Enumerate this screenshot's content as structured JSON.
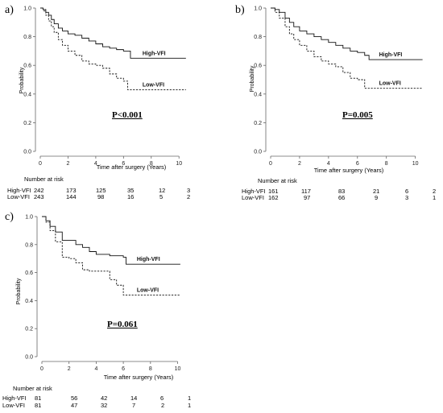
{
  "chart_data": [
    {
      "panel_label": "a)",
      "type": "line",
      "ylabel": "Probability",
      "xlabel": "Time after surgery (Years)",
      "xlim": [
        0,
        10
      ],
      "ylim": [
        0,
        1.0
      ],
      "xticks": [
        "0",
        "2",
        "4",
        "6",
        "8",
        "10"
      ],
      "yticks": [
        "0.0",
        "0.2",
        "0.4",
        "0.6",
        "0.8",
        "1.0"
      ],
      "pvalue": "P<0.001",
      "series": [
        {
          "name": "High-VFI",
          "style": "solid",
          "points": [
            [
              0,
              1.0
            ],
            [
              0.2,
              0.99
            ],
            [
              0.4,
              0.97
            ],
            [
              0.6,
              0.95
            ],
            [
              0.8,
              0.92
            ],
            [
              1.0,
              0.89
            ],
            [
              1.3,
              0.86
            ],
            [
              1.6,
              0.84
            ],
            [
              2.0,
              0.82
            ],
            [
              2.5,
              0.81
            ],
            [
              3.0,
              0.79
            ],
            [
              3.5,
              0.77
            ],
            [
              4.0,
              0.75
            ],
            [
              4.5,
              0.73
            ],
            [
              5.0,
              0.72
            ],
            [
              5.5,
              0.71
            ],
            [
              6.0,
              0.7
            ],
            [
              6.5,
              0.65
            ],
            [
              10.5,
              0.65
            ]
          ]
        },
        {
          "name": "Low-VFI",
          "style": "dashed",
          "points": [
            [
              0,
              1.0
            ],
            [
              0.2,
              0.98
            ],
            [
              0.4,
              0.95
            ],
            [
              0.6,
              0.91
            ],
            [
              0.8,
              0.87
            ],
            [
              1.0,
              0.83
            ],
            [
              1.3,
              0.78
            ],
            [
              1.6,
              0.74
            ],
            [
              2.0,
              0.7
            ],
            [
              2.5,
              0.67
            ],
            [
              3.0,
              0.63
            ],
            [
              3.5,
              0.61
            ],
            [
              4.0,
              0.6
            ],
            [
              4.5,
              0.58
            ],
            [
              5.0,
              0.54
            ],
            [
              5.5,
              0.51
            ],
            [
              6.0,
              0.49
            ],
            [
              6.3,
              0.43
            ],
            [
              10.5,
              0.43
            ]
          ]
        }
      ],
      "number_at_risk": {
        "title": "Number at risk",
        "times": [
          0,
          2,
          4,
          6,
          8,
          10
        ],
        "rows": [
          {
            "label": "High-VFI",
            "values": [
              "242",
              "173",
              "125",
              "35",
              "12",
              "3"
            ]
          },
          {
            "label": "Low-VFI",
            "values": [
              "243",
              "144",
              "98",
              "16",
              "5",
              "2"
            ]
          }
        ]
      }
    },
    {
      "panel_label": "b)",
      "type": "line",
      "ylabel": "Probability",
      "xlabel": "Time after surgery (Years)",
      "xlim": [
        0,
        10
      ],
      "ylim": [
        0,
        1.0
      ],
      "xticks": [
        "0",
        "2",
        "4",
        "6",
        "8",
        "10"
      ],
      "yticks": [
        "0.0",
        "0.2",
        "0.4",
        "0.6",
        "0.8",
        "1.0"
      ],
      "pvalue": "P=0.005",
      "series": [
        {
          "name": "High-VFI",
          "style": "solid",
          "points": [
            [
              0,
              1.0
            ],
            [
              0.3,
              0.99
            ],
            [
              0.6,
              0.97
            ],
            [
              1.0,
              0.93
            ],
            [
              1.3,
              0.9
            ],
            [
              1.6,
              0.87
            ],
            [
              2.0,
              0.84
            ],
            [
              2.5,
              0.82
            ],
            [
              3.0,
              0.8
            ],
            [
              3.5,
              0.78
            ],
            [
              4.0,
              0.76
            ],
            [
              4.5,
              0.74
            ],
            [
              5.0,
              0.72
            ],
            [
              5.5,
              0.7
            ],
            [
              6.0,
              0.69
            ],
            [
              6.5,
              0.67
            ],
            [
              6.8,
              0.64
            ],
            [
              10.5,
              0.64
            ]
          ]
        },
        {
          "name": "Low-VFI",
          "style": "dashed",
          "points": [
            [
              0,
              1.0
            ],
            [
              0.3,
              0.97
            ],
            [
              0.6,
              0.93
            ],
            [
              1.0,
              0.87
            ],
            [
              1.3,
              0.82
            ],
            [
              1.6,
              0.78
            ],
            [
              2.0,
              0.74
            ],
            [
              2.5,
              0.7
            ],
            [
              3.0,
              0.66
            ],
            [
              3.5,
              0.63
            ],
            [
              4.0,
              0.61
            ],
            [
              4.5,
              0.59
            ],
            [
              5.0,
              0.55
            ],
            [
              5.5,
              0.51
            ],
            [
              6.0,
              0.5
            ],
            [
              6.5,
              0.44
            ],
            [
              10.5,
              0.44
            ]
          ]
        }
      ],
      "number_at_risk": {
        "title": "Number at risk",
        "times": [
          0,
          2,
          4,
          6,
          8,
          10
        ],
        "rows": [
          {
            "label": "High-VFI",
            "values": [
              "161",
              "117",
              "83",
              "21",
              "6",
              "2"
            ]
          },
          {
            "label": "Low-VFI",
            "values": [
              "162",
              "97",
              "66",
              "9",
              "3",
              "1"
            ]
          }
        ]
      }
    },
    {
      "panel_label": "c)",
      "type": "line",
      "ylabel": "Probability",
      "xlabel": "Time after surgery (Years)",
      "xlim": [
        0,
        10
      ],
      "ylim": [
        0,
        1.0
      ],
      "xticks": [
        "0",
        "2",
        "4",
        "6",
        "8",
        "10"
      ],
      "yticks": [
        "0.0",
        "0.2",
        "0.4",
        "0.6",
        "0.8",
        "1.0"
      ],
      "pvalue": "P=0.061",
      "series": [
        {
          "name": "High-VFI",
          "style": "solid",
          "points": [
            [
              0,
              1.0
            ],
            [
              0.3,
              0.97
            ],
            [
              0.6,
              0.93
            ],
            [
              1.0,
              0.89
            ],
            [
              1.5,
              0.83
            ],
            [
              2.0,
              0.83
            ],
            [
              2.5,
              0.8
            ],
            [
              3.0,
              0.78
            ],
            [
              3.5,
              0.75
            ],
            [
              4.0,
              0.73
            ],
            [
              4.5,
              0.73
            ],
            [
              5.0,
              0.72
            ],
            [
              6.0,
              0.71
            ],
            [
              6.2,
              0.66
            ],
            [
              10.2,
              0.66
            ]
          ]
        },
        {
          "name": "Low-VFI",
          "style": "dashed",
          "points": [
            [
              0,
              1.0
            ],
            [
              0.3,
              0.96
            ],
            [
              0.6,
              0.9
            ],
            [
              1.0,
              0.82
            ],
            [
              1.5,
              0.71
            ],
            [
              2.0,
              0.7
            ],
            [
              2.5,
              0.67
            ],
            [
              3.0,
              0.62
            ],
            [
              3.5,
              0.61
            ],
            [
              4.5,
              0.61
            ],
            [
              5.0,
              0.55
            ],
            [
              5.5,
              0.51
            ],
            [
              6.0,
              0.44
            ],
            [
              10.2,
              0.44
            ]
          ]
        }
      ],
      "number_at_risk": {
        "title": "Number at risk",
        "times": [
          0,
          2,
          4,
          6,
          8,
          10
        ],
        "rows": [
          {
            "label": "High-VFI",
            "values": [
              "81",
              "56",
              "42",
              "14",
              "6",
              "1"
            ]
          },
          {
            "label": "Low-VFI",
            "values": [
              "81",
              "47",
              "32",
              "7",
              "2",
              "1"
            ]
          }
        ]
      }
    }
  ]
}
